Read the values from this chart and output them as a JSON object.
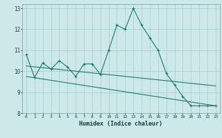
{
  "title": "",
  "xlabel": "Humidex (Indice chaleur)",
  "ylabel": "",
  "xlim": [
    -0.5,
    23.5
  ],
  "ylim": [
    8,
    13.2
  ],
  "yticks": [
    8,
    9,
    10,
    11,
    12,
    13
  ],
  "xticks": [
    0,
    1,
    2,
    3,
    4,
    5,
    6,
    7,
    8,
    9,
    10,
    11,
    12,
    13,
    14,
    15,
    16,
    17,
    18,
    19,
    20,
    21,
    22,
    23
  ],
  "bg_color": "#cce8e8",
  "grid_color": "#aacfcf",
  "line_color": "#1a7a6e",
  "main_line": {
    "x": [
      0,
      1,
      2,
      3,
      4,
      5,
      6,
      7,
      8,
      9,
      10,
      11,
      12,
      13,
      14,
      15,
      16,
      17,
      18,
      19,
      20,
      21,
      22,
      23
    ],
    "y": [
      10.8,
      9.7,
      10.4,
      10.1,
      10.5,
      10.2,
      9.75,
      10.35,
      10.35,
      9.85,
      11.0,
      12.2,
      12.0,
      13.0,
      12.2,
      11.6,
      11.0,
      9.9,
      9.35,
      8.8,
      8.35,
      8.35,
      8.35,
      8.35
    ]
  },
  "trend_line1": {
    "x": [
      0,
      23
    ],
    "y": [
      9.75,
      8.35
    ]
  },
  "trend_line2": {
    "x": [
      0,
      23
    ],
    "y": [
      10.25,
      9.3
    ]
  }
}
